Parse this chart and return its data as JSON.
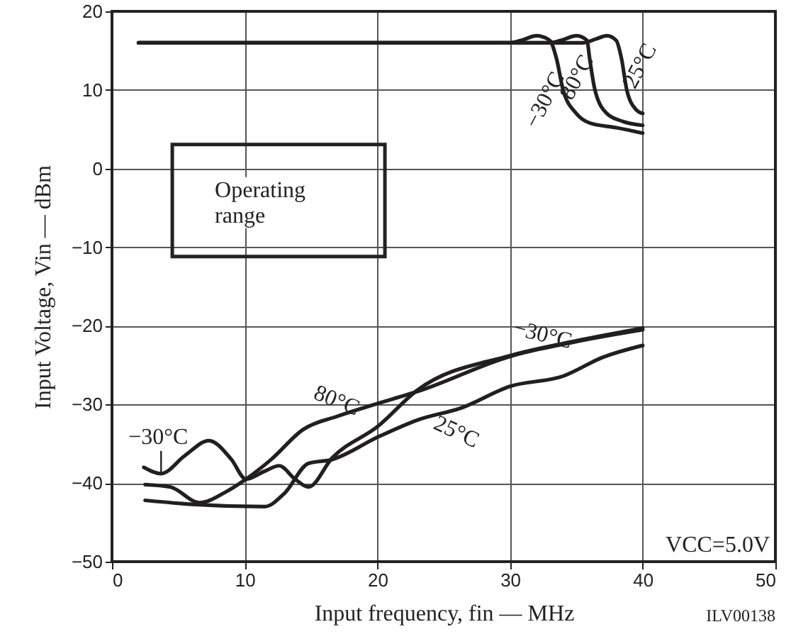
{
  "chart_data": {
    "type": "line",
    "xlabel": "Input frequency,  fin — MHz",
    "ylabel": "Input Voltage,  Vin — dBm",
    "xlim": [
      0,
      50
    ],
    "ylim": [
      -50,
      20
    ],
    "xticks": [
      0,
      10,
      20,
      30,
      40,
      50
    ],
    "yticks": [
      -50,
      -40,
      -30,
      -20,
      -10,
      0,
      10,
      20
    ],
    "grid": true,
    "marker": "none",
    "line_style": "solid",
    "series": [
      {
        "color": "#231f20",
        "x": [
          2,
          30,
          31,
          32,
          33,
          33.5,
          34,
          35,
          36,
          38,
          40
        ],
        "values": [
          16,
          16,
          16.4,
          16.9,
          16.3,
          14,
          10,
          7,
          5.8,
          5.2,
          4.5
        ]
      },
      {
        "color": "#231f20",
        "x": [
          2,
          33,
          34,
          35,
          35.8,
          36,
          36.4,
          37.3,
          38.5,
          40
        ],
        "values": [
          16,
          16,
          16.4,
          16.9,
          16.3,
          14,
          10,
          7,
          6,
          5.5
        ]
      },
      {
        "color": "#231f20",
        "x": [
          2,
          35.5,
          36.5,
          37.3,
          38,
          38.4,
          38.8,
          39.5,
          40
        ],
        "values": [
          16,
          16,
          16.5,
          16.9,
          16.3,
          14,
          10,
          7.5,
          7
        ]
      },
      {
        "color": "#231f20",
        "x": [
          2.4,
          3.7,
          5.5,
          7.3,
          9,
          10.1,
          11.5,
          12.6,
          13.8,
          14.8,
          16.6,
          20.1,
          23,
          30,
          35,
          40
        ],
        "values": [
          -38,
          -38.8,
          -36.5,
          -34.6,
          -37,
          -39.5,
          -38.5,
          -37.8,
          -39.5,
          -40.5,
          -36.8,
          -32.7,
          -28.2,
          -23.8,
          -21.9,
          -20.3
        ]
      },
      {
        "color": "#231f20",
        "x": [
          2.5,
          4.4,
          6.6,
          8.5,
          10.1,
          12,
          14.4,
          17,
          19.4,
          23.3,
          30,
          35,
          40
        ],
        "values": [
          -40.2,
          -40.5,
          -42.5,
          -41.2,
          -39.5,
          -37,
          -33.2,
          -31.5,
          -30.2,
          -28.2,
          -23.9,
          -22,
          -20.5
        ]
      },
      {
        "color": "#231f20",
        "x": [
          2.5,
          6,
          11.5,
          13,
          14.8,
          16.6,
          20.1,
          23,
          26.4,
          30,
          34,
          37,
          40
        ],
        "values": [
          -42.2,
          -42.7,
          -43,
          -41.3,
          -37.5,
          -37,
          -34.1,
          -32,
          -30.4,
          -27.7,
          -26.4,
          -24,
          -22.5
        ]
      }
    ],
    "annotations": [
      {
        "text": "−30°C",
        "x": 34,
        "y": 10
      },
      {
        "text": "80°C",
        "x": 36.4,
        "y": 10
      },
      {
        "text": "25°C",
        "x": 38.8,
        "y": 10
      },
      {
        "text": "−30°C",
        "x": 3.7,
        "y": -38.8
      },
      {
        "text": "80°C",
        "x": 19.4,
        "y": -30.2
      },
      {
        "text": "25°C",
        "x": 26.4,
        "y": -30.4
      },
      {
        "text": "−30°C",
        "x": 30,
        "y": -23.8
      },
      "Operating range",
      "VCC=5.0V",
      "ILV00138"
    ]
  }
}
